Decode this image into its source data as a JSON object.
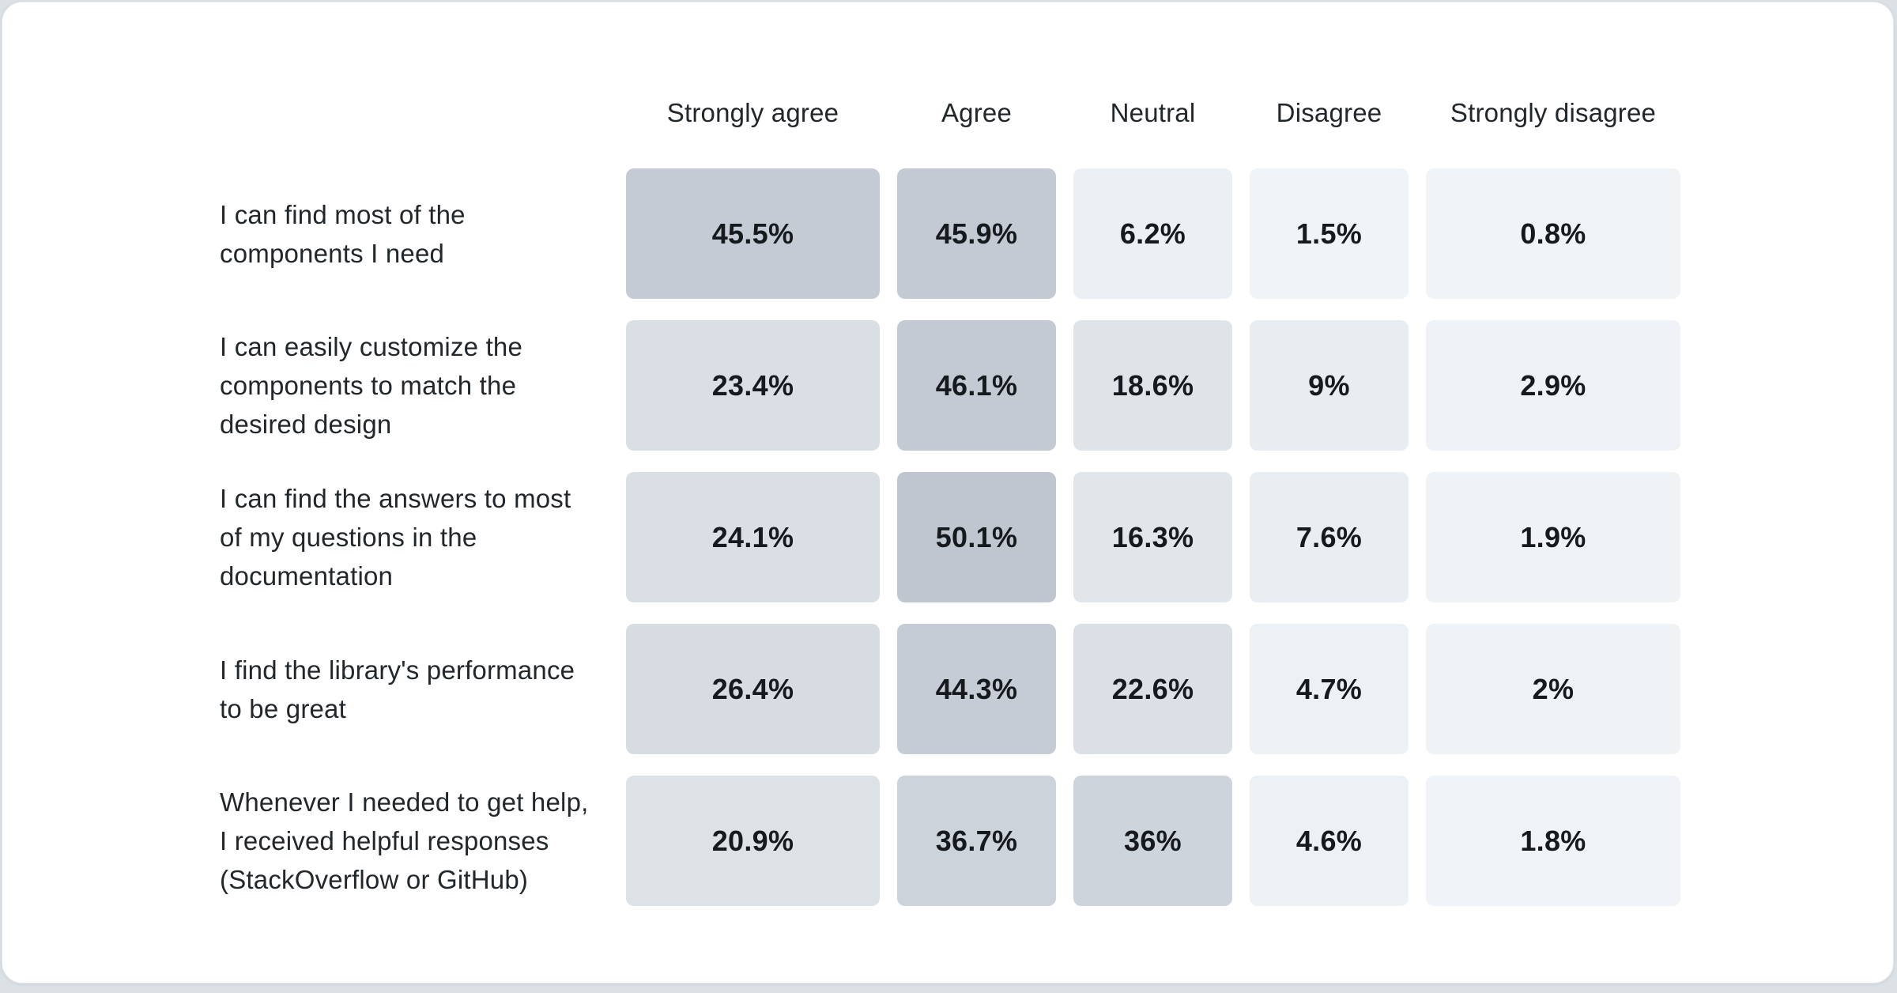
{
  "palette": {
    "page_bg": "#DCE1E6",
    "card_bg": "#FFFFFF",
    "card_border": "#E4E7EB",
    "header_text": "#21272A",
    "label_text": "#21272A",
    "value_text": "#16191D"
  },
  "chart_data": {
    "type": "heatmap",
    "title": "",
    "categories": [
      "Strongly agree",
      "Agree",
      "Neutral",
      "Disagree",
      "Strongly disagree"
    ],
    "rows": [
      {
        "label": "I can find most of the components I need",
        "label_lines": [
          "I can find most of the",
          "components I need"
        ],
        "values": [
          45.5,
          45.9,
          6.2,
          1.5,
          0.8
        ],
        "display": [
          "45.5%",
          "45.9%",
          "6.2%",
          "1.5%",
          "0.8%"
        ]
      },
      {
        "label": "I can easily customize the components to match the desired design",
        "label_lines": [
          "I can easily customize the",
          "components to match the",
          "desired design"
        ],
        "values": [
          23.4,
          46.1,
          18.6,
          9,
          2.9
        ],
        "display": [
          "23.4%",
          "46.1%",
          "18.6%",
          "9%",
          "2.9%"
        ]
      },
      {
        "label": "I can find the answers to most of my questions in the documentation",
        "label_lines": [
          "I can find the answers to most",
          "of my questions in the",
          "documentation"
        ],
        "values": [
          24.1,
          50.1,
          16.3,
          7.6,
          1.9
        ],
        "display": [
          "24.1%",
          "50.1%",
          "16.3%",
          "7.6%",
          "1.9%"
        ]
      },
      {
        "label": "I find the library's performance to be great",
        "label_lines": [
          "I find the library's performance",
          "to be great"
        ],
        "values": [
          26.4,
          44.3,
          22.6,
          4.7,
          2
        ],
        "display": [
          "26.4%",
          "44.3%",
          "22.6%",
          "4.7%",
          "2%"
        ]
      },
      {
        "label": "Whenever I needed to get help, I received helpful responses (StackOverflow or GitHub)",
        "label_lines": [
          "Whenever I needed to get help,",
          "I received helpful responses",
          "(StackOverflow or GitHub)"
        ],
        "values": [
          20.9,
          36.7,
          36,
          4.6,
          1.8
        ],
        "display": [
          "20.9%",
          "36.7%",
          "36%",
          "4.6%",
          "1.8%"
        ]
      }
    ],
    "value_unit": "%",
    "color_scale": {
      "min_color": "#F2F5F8",
      "max_color": "#8C98A8",
      "domain": [
        0,
        100
      ]
    },
    "legend": "none",
    "grid": false
  }
}
